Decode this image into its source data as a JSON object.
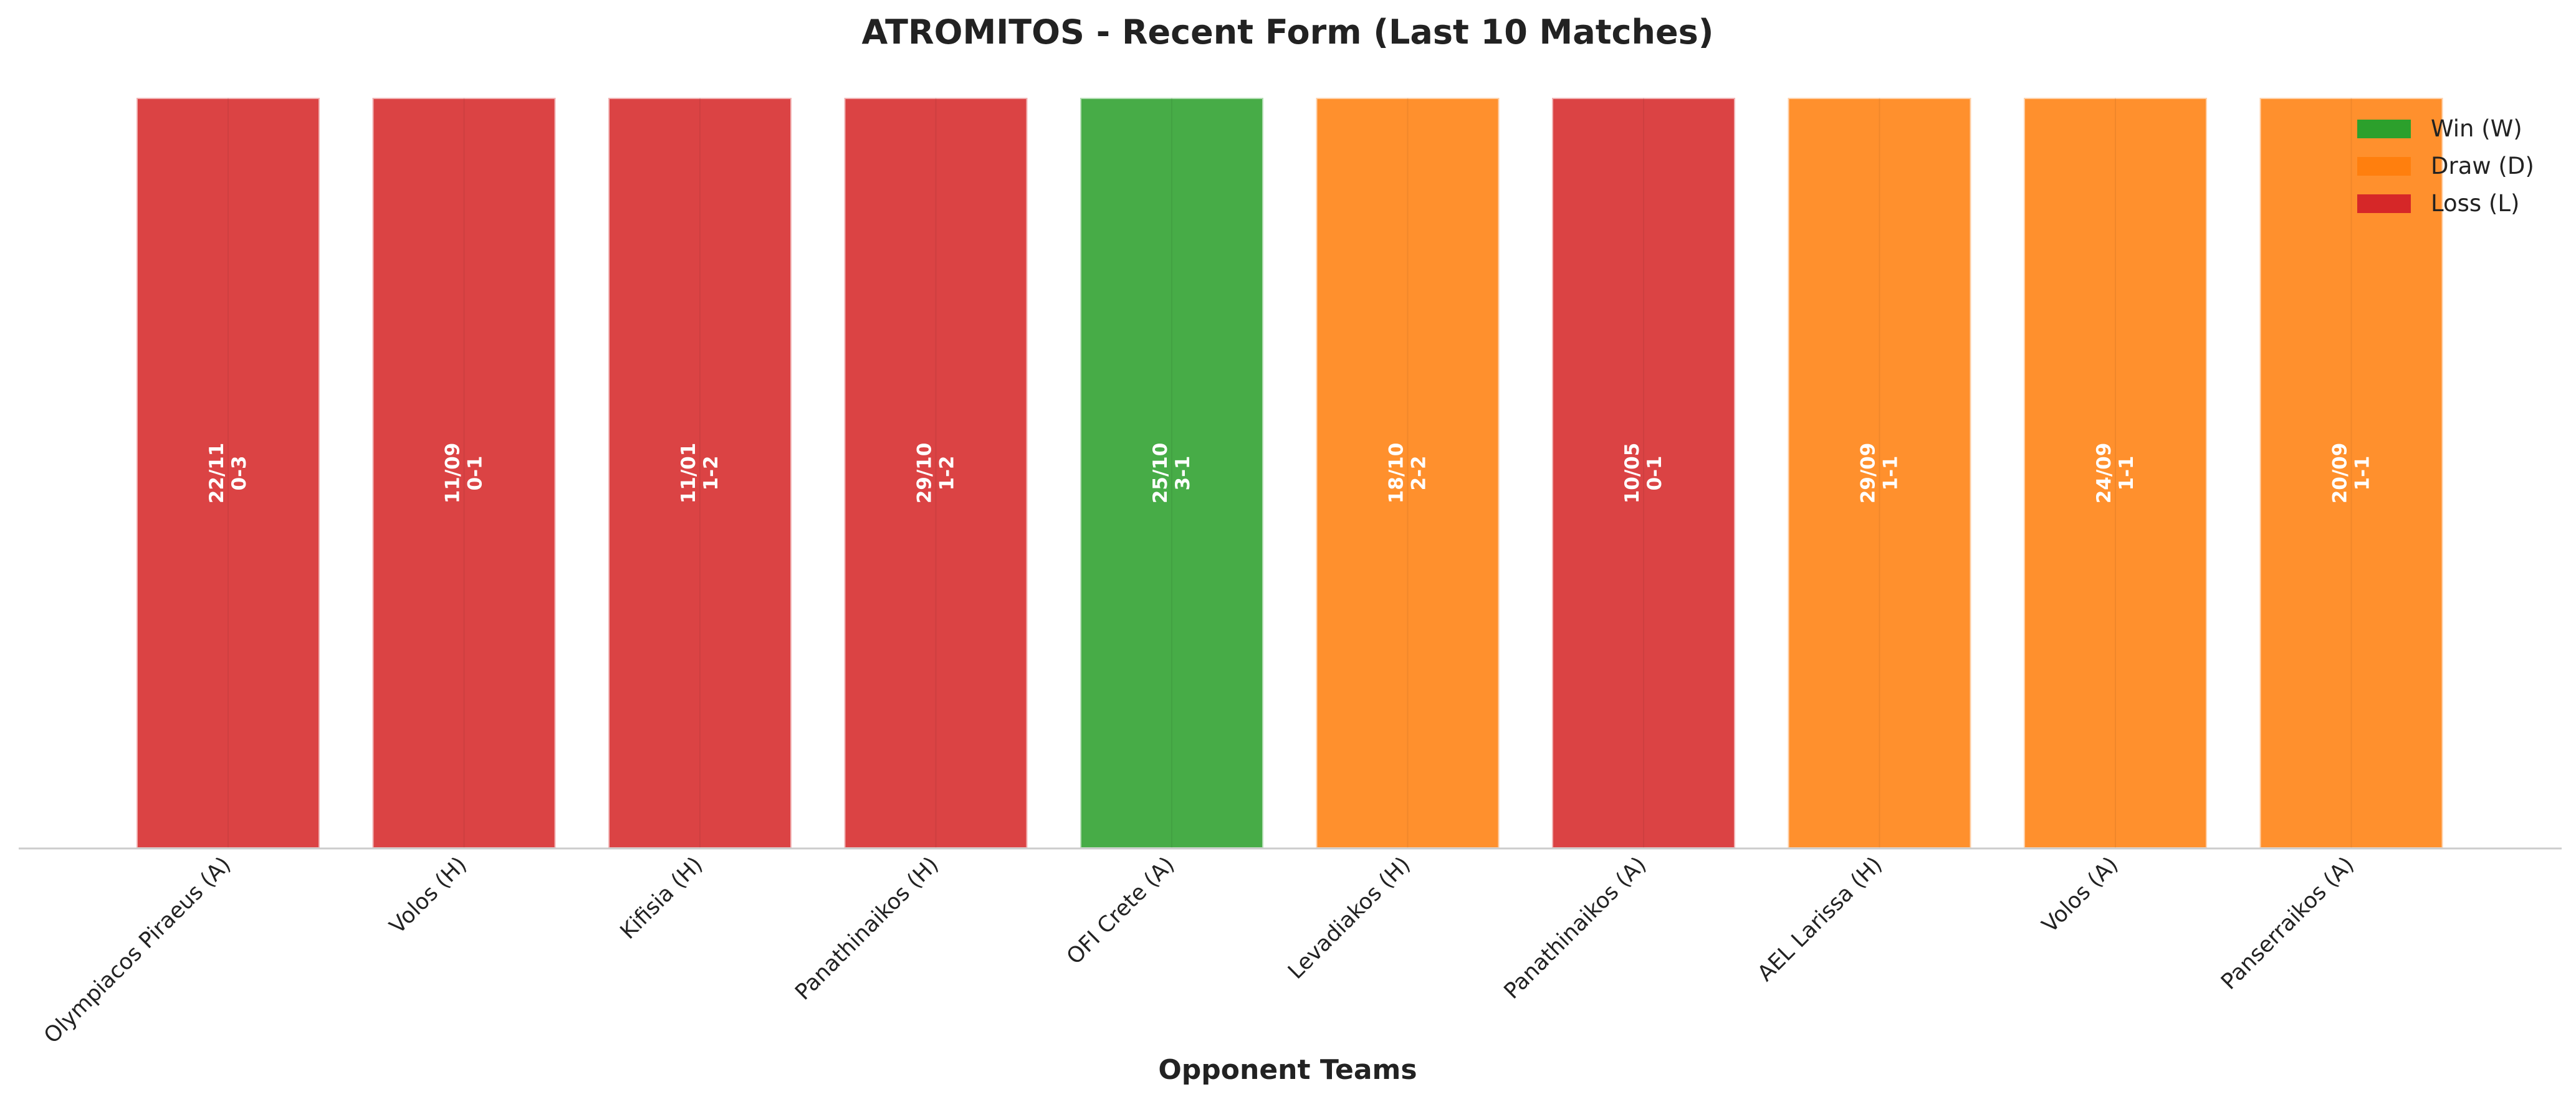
{
  "chart_data": {
    "type": "bar",
    "title": "ATROMITOS - Recent Form (Last 10 Matches)",
    "xlabel": "Opponent Teams",
    "ylabel": "",
    "categories": [
      "Olympiacos Piraeus (A)",
      "Volos (H)",
      "Kifisia (H)",
      "Panathinaikos (H)",
      "OFI Crete (A)",
      "Levadiakos (H)",
      "Panathinaikos (A)",
      "AEL Larissa (H)",
      "Volos (A)",
      "Panserraikos (A)"
    ],
    "values": [
      1,
      1,
      1,
      1,
      1,
      1,
      1,
      1,
      1,
      1
    ],
    "matches": [
      {
        "date": "22/11",
        "score": "0-3",
        "result": "L"
      },
      {
        "date": "11/09",
        "score": "0-1",
        "result": "L"
      },
      {
        "date": "11/01",
        "score": "1-2",
        "result": "L"
      },
      {
        "date": "29/10",
        "score": "1-2",
        "result": "L"
      },
      {
        "date": "25/10",
        "score": "3-1",
        "result": "W"
      },
      {
        "date": "18/10",
        "score": "2-2",
        "result": "D"
      },
      {
        "date": "10/05",
        "score": "0-1",
        "result": "L"
      },
      {
        "date": "29/09",
        "score": "1-1",
        "result": "D"
      },
      {
        "date": "24/09",
        "score": "1-1",
        "result": "D"
      },
      {
        "date": "20/09",
        "score": "1-1",
        "result": "D"
      }
    ],
    "legend": {
      "placement": "top-right",
      "entries": [
        {
          "key": "W",
          "label": "Win (W)",
          "color": "#2ca02c"
        },
        {
          "key": "D",
          "label": "Draw (D)",
          "color": "#ff7f0e"
        },
        {
          "key": "L",
          "label": "Loss (L)",
          "color": "#d62728"
        }
      ]
    },
    "colors": {
      "W": "#2ca02c",
      "D": "#ff7f0e",
      "L": "#d62728"
    },
    "grid": false,
    "ylim": [
      0,
      1
    ]
  }
}
